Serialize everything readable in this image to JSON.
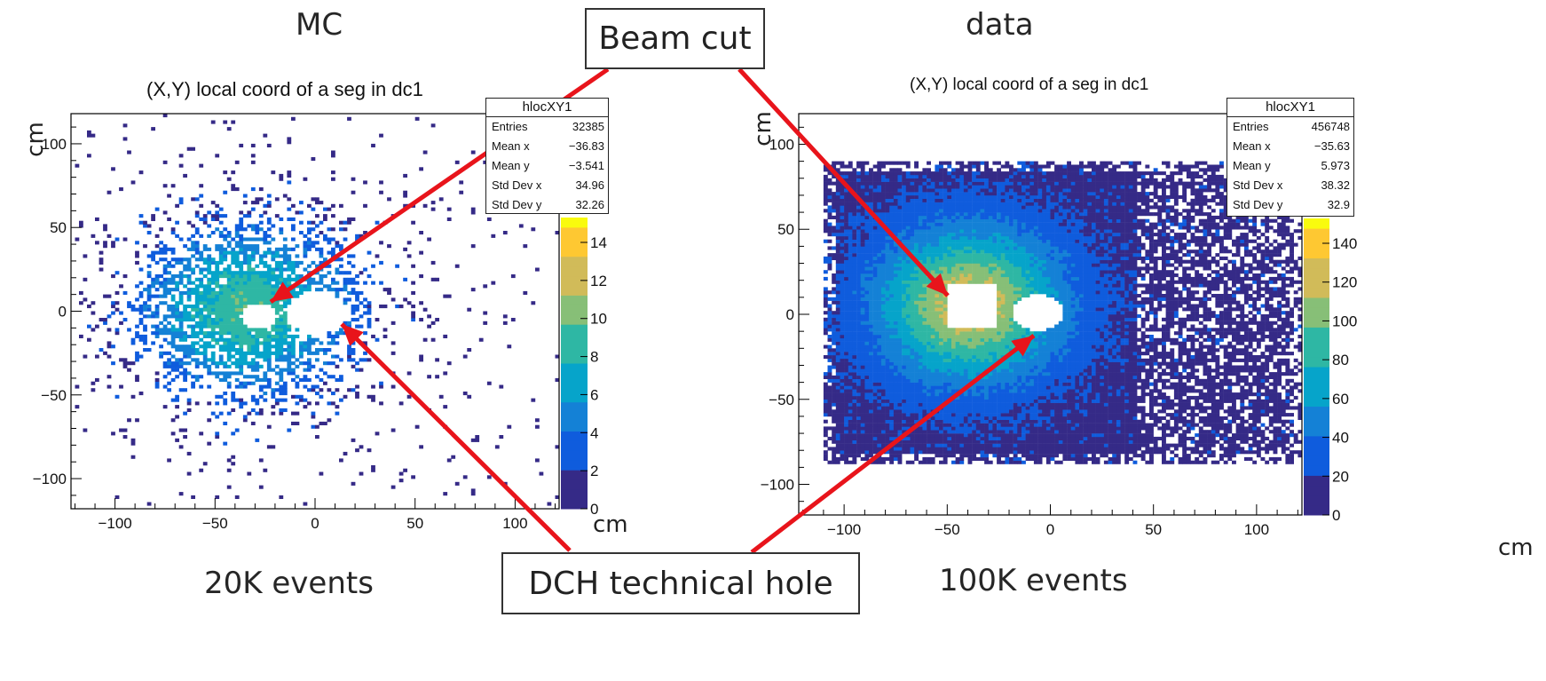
{
  "labels": {
    "mc_heading": "MC",
    "data_heading": "data",
    "mc_events": "20K events",
    "data_events": "100K events",
    "beam_cut": "Beam cut",
    "dch_hole": "DCH technical hole"
  },
  "colors": {
    "arrow": "#e8141b",
    "frame": "#000000"
  },
  "chart_data": [
    {
      "type": "heatmap",
      "title": "(X,Y) local coord of a seg in dc1",
      "ylabel": "cm",
      "zlabel": "cm",
      "xlim": [
        -122,
        122
      ],
      "ylim": [
        -118,
        118
      ],
      "xticks": [
        -100,
        -50,
        0,
        50,
        100
      ],
      "yticks": [
        -100,
        -50,
        0,
        50,
        100
      ],
      "xticklabels": [
        "−100",
        "−50",
        "0",
        "50",
        "100"
      ],
      "yticklabels": [
        "−100",
        "−50",
        "0",
        "50",
        "100"
      ],
      "colorbar_ticks": [
        "0",
        "2",
        "4",
        "6",
        "8",
        "10",
        "12",
        "14"
      ],
      "stats": {
        "name": "hlocXY1",
        "rows": [
          {
            "label": "Entries",
            "value": "32385"
          },
          {
            "label": "Mean x",
            "value": "−36.83"
          },
          {
            "label": "Mean y",
            "value": "−3.541"
          },
          {
            "label": "Std Dev x",
            "value": "34.96"
          },
          {
            "label": "Std Dev y",
            "value": "32.26"
          }
        ]
      },
      "distribution": {
        "center_x": -35,
        "center_y": 0,
        "sigma_x": 34,
        "sigma_y": 32
      },
      "holes": [
        {
          "shape": "ellipse",
          "cx": -28,
          "cy": -3,
          "rx": 9,
          "ry": 8
        },
        {
          "shape": "ellipse",
          "cx": 0,
          "cy": -1,
          "rx": 14,
          "ry": 13
        }
      ]
    },
    {
      "type": "heatmap",
      "title": "(X,Y) local coord of a seg in dc1",
      "ylabel": "cm",
      "zlabel": "cm",
      "xlim": [
        -122,
        122
      ],
      "ylim": [
        -118,
        118
      ],
      "xticks": [
        -100,
        -50,
        0,
        50,
        100
      ],
      "yticks": [
        -100,
        -50,
        0,
        50,
        100
      ],
      "xticklabels": [
        "−100",
        "−50",
        "0",
        "50",
        "100"
      ],
      "yticklabels": [
        "−100",
        "−50",
        "0",
        "50",
        "100"
      ],
      "colorbar_ticks": [
        "0",
        "20",
        "40",
        "60",
        "80",
        "100",
        "120",
        "140"
      ],
      "stats": {
        "name": "hlocXY1",
        "rows": [
          {
            "label": "Entries",
            "value": "456748"
          },
          {
            "label": "Mean x",
            "value": "−35.63"
          },
          {
            "label": "Mean y",
            "value": "5.973"
          },
          {
            "label": "Std Dev x",
            "value": "38.32"
          },
          {
            "label": "Std Dev y",
            "value": "32.9"
          }
        ]
      },
      "acceptance": {
        "xmin": -110,
        "xmax": 120,
        "ymin": -88,
        "ymax": 88
      },
      "distribution": {
        "center_x": -40,
        "center_y": 5,
        "sigma_x": 30,
        "sigma_y": 30
      },
      "holes": [
        {
          "shape": "box",
          "x0": -50,
          "x1": -26,
          "y0": -8,
          "y1": 17
        },
        {
          "shape": "ellipse",
          "cx": -6,
          "cy": 1,
          "rx": 12,
          "ry": 11
        }
      ]
    }
  ]
}
